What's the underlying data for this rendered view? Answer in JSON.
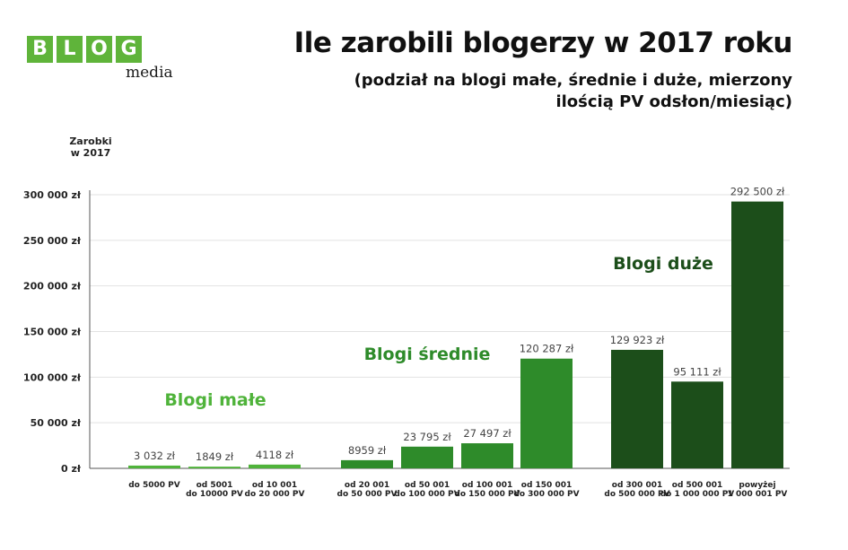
{
  "logo": {
    "letters": [
      "B",
      "L",
      "O",
      "G"
    ],
    "sub": "media"
  },
  "title": "Ile zarobili blogerzy w 2017 roku",
  "subtitle": "(podział na blogi małe, średnie i duże, mierzony\nilością PV odsłon/miesiąc)",
  "colors": {
    "small": "#4fb33a",
    "medium": "#2e8b2a",
    "large": "#1c4e1a",
    "grid": "#e2e2e2"
  },
  "chart_data": {
    "type": "bar",
    "title": "Ile zarobili blogerzy w 2017 roku",
    "ylabel": [
      "Zarobki",
      "w 2017"
    ],
    "ylim": [
      0,
      300000
    ],
    "yticks": [
      {
        "value": 0,
        "label": "0 zł"
      },
      {
        "value": 50000,
        "label": "50 000 zł"
      },
      {
        "value": 100000,
        "label": "100 000 zł"
      },
      {
        "value": 150000,
        "label": "150 000 zł"
      },
      {
        "value": 200000,
        "label": "200 000 zł"
      },
      {
        "value": 250000,
        "label": "250 000 zł"
      },
      {
        "value": 300000,
        "label": "300 000 zł"
      }
    ],
    "grid": true,
    "groups": [
      {
        "name": "Blogi małe",
        "color_key": "small"
      },
      {
        "name": "Blogi średnie",
        "color_key": "medium"
      },
      {
        "name": "Blogi duże",
        "color_key": "large"
      }
    ],
    "bars": [
      {
        "group": 0,
        "category": [
          "do 5000 PV"
        ],
        "value": 3032,
        "label": "3 032 zł"
      },
      {
        "group": 0,
        "category": [
          "od 5001",
          "do 10000 PV"
        ],
        "value": 1849,
        "label": "1849 zł"
      },
      {
        "group": 0,
        "category": [
          "od 10 001",
          "do 20 000 PV"
        ],
        "value": 4118,
        "label": "4118 zł"
      },
      {
        "group": 1,
        "category": [
          "od 20 001",
          "do 50 000 PV"
        ],
        "value": 8959,
        "label": "8959 zł"
      },
      {
        "group": 1,
        "category": [
          "od 50 001",
          "do 100 000 PV"
        ],
        "value": 23795,
        "label": "23 795 zł"
      },
      {
        "group": 1,
        "category": [
          "od 100 001",
          "do 150 000 PV"
        ],
        "value": 27497,
        "label": "27 497 zł"
      },
      {
        "group": 1,
        "category": [
          "od 150 001",
          "do 300 000 PV"
        ],
        "value": 120287,
        "label": "120 287 zł"
      },
      {
        "group": 2,
        "category": [
          "od 300 001",
          "do 500 000 PV"
        ],
        "value": 129923,
        "label": "129 923 zł"
      },
      {
        "group": 2,
        "category": [
          "od 500 001",
          "do 1 000 000 PV"
        ],
        "value": 95111,
        "label": "95 111 zł"
      },
      {
        "group": 2,
        "category": [
          "powyżej",
          "1 000 001 PV"
        ],
        "value": 292500,
        "label": "292 500 zł"
      }
    ]
  }
}
